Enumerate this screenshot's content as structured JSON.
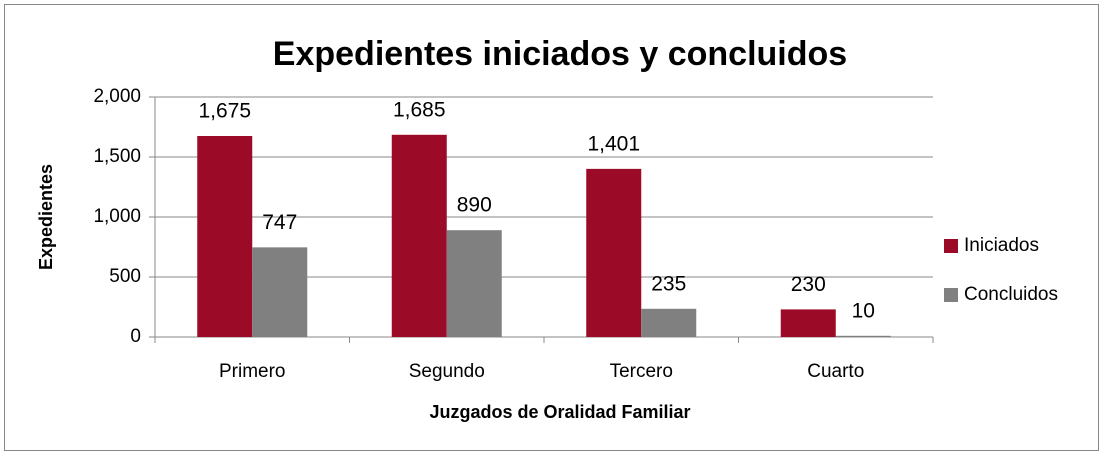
{
  "chart_data": {
    "type": "bar",
    "title": "Expedientes iniciados y concluidos",
    "xlabel": "Juzgados de Oralidad Familiar",
    "ylabel": "Expedientes",
    "categories": [
      "Primero",
      "Segundo",
      "Tercero",
      "Cuarto"
    ],
    "series": [
      {
        "name": "Iniciados",
        "color": "#9b0a26",
        "values": [
          1675,
          1685,
          1401,
          230
        ],
        "value_labels": [
          "1,675",
          "1,685",
          "1,401",
          "230"
        ]
      },
      {
        "name": "Concluidos",
        "color": "#808080",
        "values": [
          747,
          890,
          235,
          10
        ]
      }
    ],
    "ylim": [
      0,
      2000
    ],
    "yticks": [
      0,
      500,
      {
        "value": 1000,
        "label": "1,000"
      },
      {
        "value": 1500,
        "label": "1,500"
      },
      {
        "value": 2000,
        "label": "2,000"
      }
    ],
    "grid": true,
    "legend": "right"
  }
}
